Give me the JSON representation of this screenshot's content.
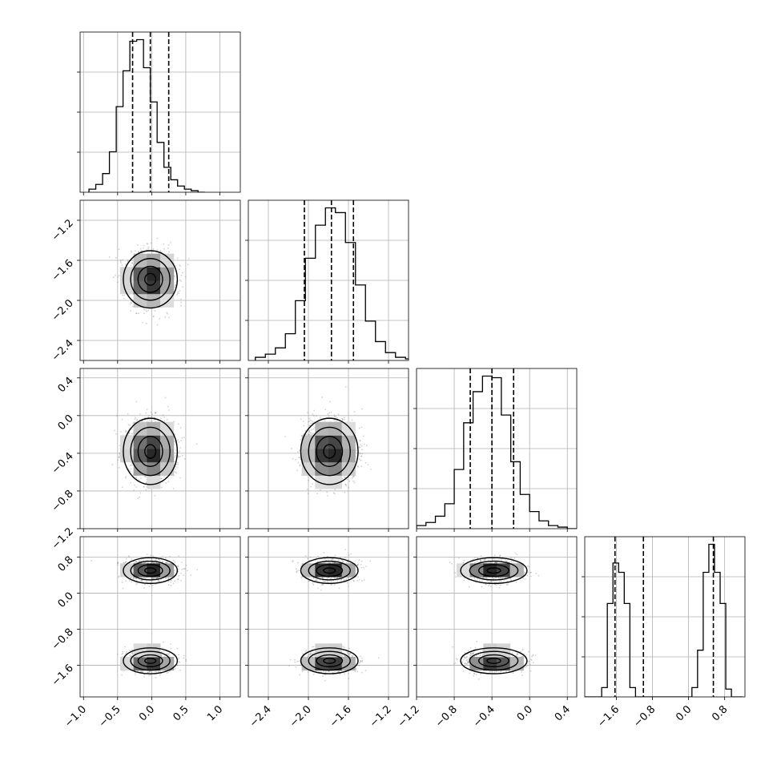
{
  "chart_data": {
    "type": "corner",
    "title": "",
    "parameters": [
      {
        "range": [
          -1.05,
          1.3
        ],
        "ticks": [
          -1.0,
          -0.5,
          0.0,
          0.5,
          1.0
        ],
        "tick_labels": [
          "−1.0",
          "−0.5",
          "0.0",
          "0.5",
          "1.0"
        ],
        "quantiles": [
          -0.28,
          -0.02,
          0.25
        ],
        "histogram": {
          "start": -0.92,
          "bin_width": 0.1,
          "counts": [
            0.02,
            0.05,
            0.12,
            0.26,
            0.55,
            0.78,
            0.97,
            0.98,
            0.8,
            0.58,
            0.32,
            0.16,
            0.08,
            0.04,
            0.02,
            0.01,
            0.0
          ]
        },
        "components": [
          {
            "weight": 1.0,
            "mean": -0.02,
            "sd": 0.18
          }
        ]
      },
      {
        "range": [
          -2.6,
          -1.0
        ],
        "ticks": [
          -2.4,
          -2.0,
          -1.6,
          -1.2
        ],
        "tick_labels": [
          "−2.4",
          "−2.0",
          "−1.6",
          "−1.2"
        ],
        "quantiles": [
          -2.04,
          -1.77,
          -1.55
        ],
        "histogram": {
          "start": -2.53,
          "bin_width": 0.1,
          "counts": [
            0.02,
            0.04,
            0.08,
            0.17,
            0.38,
            0.65,
            0.86,
            0.97,
            0.94,
            0.75,
            0.48,
            0.25,
            0.12,
            0.05,
            0.02,
            0.01
          ]
        },
        "components": [
          {
            "weight": 1.0,
            "mean": -1.79,
            "sd": 0.13
          }
        ]
      },
      {
        "range": [
          -1.2,
          0.5
        ],
        "ticks": [
          -1.2,
          -0.8,
          -0.4,
          0.0,
          0.4
        ],
        "tick_labels": [
          "−1.2",
          "−0.8",
          "−0.4",
          "0.0",
          "0.4"
        ],
        "quantiles": [
          -0.63,
          -0.4,
          -0.17
        ],
        "histogram": {
          "start": -1.2,
          "bin_width": 0.1,
          "counts": [
            0.02,
            0.04,
            0.08,
            0.16,
            0.38,
            0.68,
            0.88,
            0.98,
            0.97,
            0.73,
            0.43,
            0.22,
            0.11,
            0.05,
            0.02,
            0.01,
            0.0
          ]
        },
        "components": [
          {
            "weight": 1.0,
            "mean": -0.38,
            "sd": 0.16
          }
        ]
      },
      {
        "range": [
          -2.3,
          1.25
        ],
        "ticks": [
          -1.6,
          -0.8,
          0.0,
          0.8
        ],
        "tick_labels": [
          "−1.6",
          "−0.8",
          "0.0",
          "0.8"
        ],
        "quantiles": [
          -1.63,
          -1.0,
          0.55
        ],
        "histogram": {
          "start": -2.3,
          "bin_width": 0.125,
          "counts": [
            0.0,
            0.0,
            0.0,
            0.06,
            0.6,
            0.86,
            0.8,
            0.6,
            0.06,
            0.0,
            0.0,
            0.0,
            0.0,
            0.0,
            0.0,
            0.0,
            0.0,
            0.0,
            0.0,
            0.06,
            0.3,
            0.8,
            0.98,
            0.8,
            0.6,
            0.05,
            0.0,
            0.0
          ]
        },
        "components": [
          {
            "weight": 0.5,
            "mean": -1.5,
            "sd": 0.13
          },
          {
            "weight": 0.5,
            "mean": 0.5,
            "sd": 0.13
          }
        ]
      }
    ],
    "grid": true,
    "quantile_style": "dashed",
    "contour_levels": 4,
    "points_per_panel": 1400
  }
}
